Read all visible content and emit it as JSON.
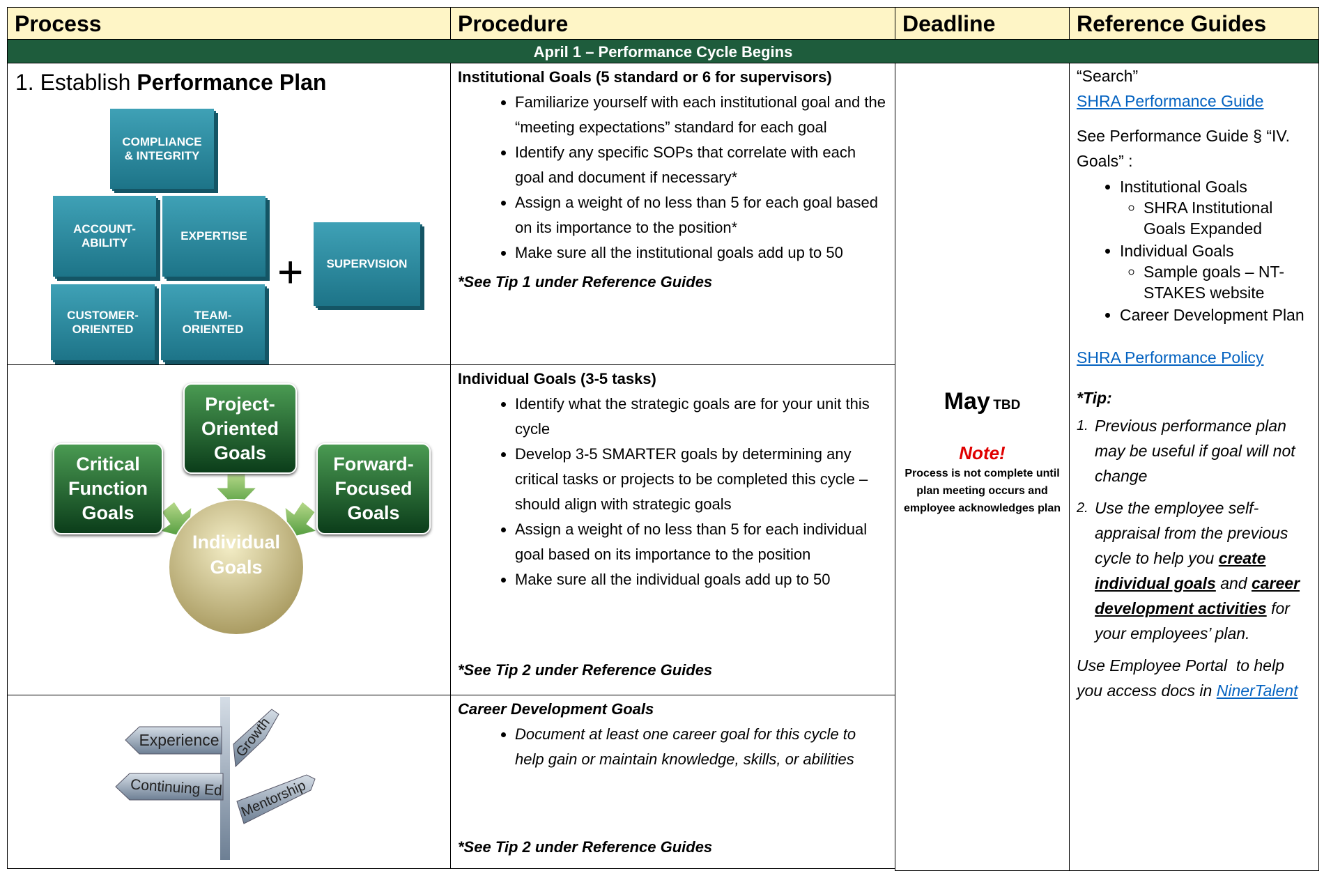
{
  "header": {
    "columns": [
      "Process",
      "Procedure",
      "Deadline",
      "Reference Guides"
    ]
  },
  "banner": "April 1 – Performance Cycle Begins",
  "process": {
    "step": {
      "prefix": "1. Establish ",
      "title": "Performance Plan"
    },
    "institutional_blocks": [
      "COMPLIANCE\n& INTEGRITY",
      "ACCOUNT-\nABILITY",
      "EXPERTISE",
      "CUSTOMER-\nORIENTED",
      "TEAM-\nORIENTED"
    ],
    "plus": "+",
    "supervision_block": "SUPERVISION",
    "goal_diagram": {
      "inputs": [
        "Critical\nFunction\nGoals",
        "Project-\nOriented\nGoals",
        "Forward-\nFocused\nGoals"
      ],
      "center": "Individual\nGoals"
    },
    "signpost": [
      "Experience",
      "Growth",
      "Continuing Ed",
      "Mentorship"
    ]
  },
  "procedure": {
    "sections": [
      {
        "heading": "Institutional Goals (5 standard or 6 for supervisors)",
        "italic": false,
        "bullets": [
          "Familiarize yourself with each institutional goal and the “meeting expectations” standard for each goal",
          "Identify any specific SOPs that correlate with each goal and document if necessary*",
          "Assign a weight of no less than 5 for each goal based on its importance to the position*",
          "Make sure all the institutional goals add up to 50"
        ],
        "tip": "*See Tip 1 under Reference Guides"
      },
      {
        "heading": "Individual Goals (3-5 tasks)",
        "italic": false,
        "bullets": [
          "Identify what the strategic goals are for your unit this cycle",
          "Develop 3-5 SMARTER goals by determining any critical tasks or projects to be completed this cycle – should align with strategic goals",
          "Assign a weight of no less than 5 for each individual goal based on its importance to the position",
          "Make sure all the individual goals add up to 50"
        ],
        "tip": "*See Tip 2 under Reference Guides"
      },
      {
        "heading": "Career Development Goals",
        "italic": true,
        "bullets": [
          "Document at least one career goal for this cycle to help gain or maintain knowledge, skills, or abilities"
        ],
        "tip": "*See Tip 2 under Reference Guides"
      }
    ]
  },
  "deadline": {
    "month": "May",
    "detail": "TBD",
    "note_title": "Note!",
    "note": "Process is not complete until plan meeting occurs and employee acknowledges plan"
  },
  "reference": {
    "search": "“Search”",
    "guide_link": "SHRA Performance Guide",
    "see": "See Performance Guide § “IV. Goals” :",
    "items": [
      {
        "text": "Institutional Goals",
        "sub": [
          "SHRA Institutional Goals Expanded"
        ]
      },
      {
        "text": "Individual Goals",
        "sub": [
          "Sample goals – NT-STAKES website"
        ]
      },
      {
        "text": "Career Development Plan"
      }
    ],
    "policy_link": "SHRA Performance Policy",
    "tip_heading": "*Tip:",
    "tips": [
      {
        "number": "1.",
        "runs": [
          {
            "text": "Previous performance plan may be useful if goal will not change"
          }
        ]
      },
      {
        "number": "2.",
        "runs": [
          {
            "text": "Use the employee self-appraisal from the previous cycle to help you "
          },
          {
            "text": "create individual goals",
            "style": "bold-underline"
          },
          {
            "text": " and "
          },
          {
            "text": "career development activities",
            "style": "bold-underline"
          },
          {
            "text": " for your employees’ plan."
          }
        ]
      }
    ],
    "portal": {
      "text": "Use Employee Portal  to help you access docs in ",
      "link": "NinerTalent"
    }
  }
}
